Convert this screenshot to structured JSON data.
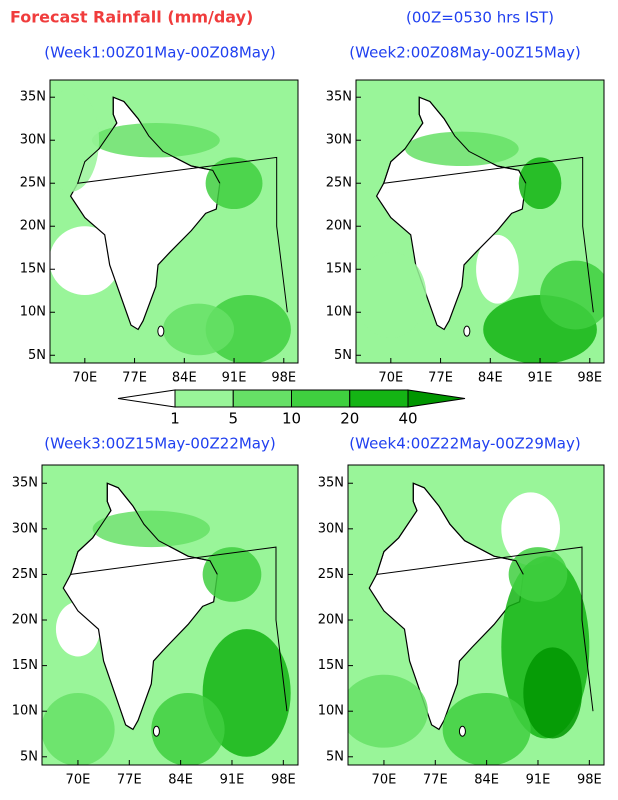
{
  "title": "Forecast Rainfall (mm/day)",
  "subtitle": "(00Z=0530 hrs IST)",
  "lon_ticks": [
    {
      "value": 70,
      "label": "70E"
    },
    {
      "value": 77,
      "label": "77E"
    },
    {
      "value": 84,
      "label": "84E"
    },
    {
      "value": 91,
      "label": "91E"
    },
    {
      "value": 98,
      "label": "98E"
    }
  ],
  "lat_ticks": [
    {
      "value": 35,
      "label": "35N"
    },
    {
      "value": 30,
      "label": "30N"
    },
    {
      "value": 25,
      "label": "25N"
    },
    {
      "value": 20,
      "label": "20N"
    },
    {
      "value": 15,
      "label": "15N"
    },
    {
      "value": 10,
      "label": "10N"
    },
    {
      "value": 5,
      "label": "5N"
    }
  ],
  "colorbar": {
    "levels": [
      1,
      5,
      10,
      20,
      40
    ],
    "colors": [
      "#ffffff",
      "#99f599",
      "#66e066",
      "#3fcf3f",
      "#14b414",
      "#009600"
    ]
  },
  "panels": [
    {
      "title": "(Week1:00Z01May-00Z08May)"
    },
    {
      "title": "(Week2:00Z08May-00Z15May)"
    },
    {
      "title": "(Week3:00Z15May-00Z22May)"
    },
    {
      "title": "(Week4:00Z22May-00Z29May)"
    }
  ]
}
